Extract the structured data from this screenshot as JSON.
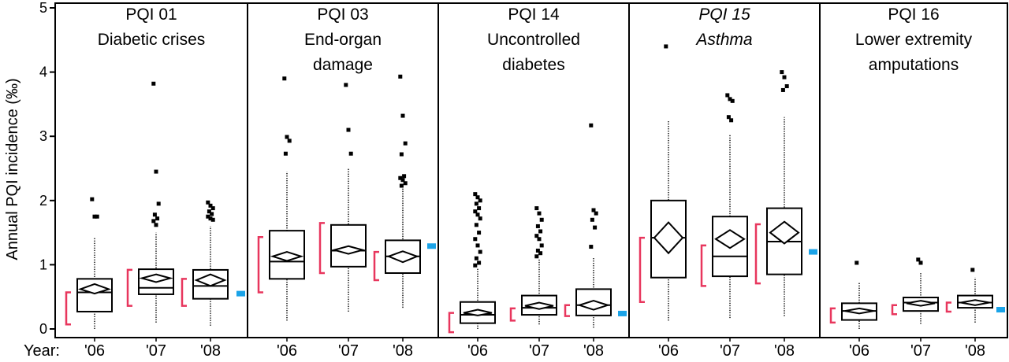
{
  "chart_data": {
    "type": "box",
    "ylabel": "Annual PQI incidence (‰)",
    "ylim": [
      0,
      5
    ],
    "yticks": [
      "0",
      "1",
      "2",
      "3",
      "4",
      "5"
    ],
    "year_axis_label": "Year:",
    "years": [
      "'06",
      "'07",
      "'08"
    ],
    "colors": {
      "interval": "#e8365d",
      "reference": "#1aa3e8",
      "box": "#000000"
    },
    "panels": [
      {
        "title": [
          "PQI 01",
          "Diabetic crises"
        ],
        "italic": false,
        "reference": 0.55,
        "boxes": [
          {
            "year": "'06",
            "q1": 0.27,
            "median": 0.57,
            "q3": 0.78,
            "wlo": 0.0,
            "whi": 1.42,
            "mean": 0.62,
            "ci": [
              0.55,
              0.7
            ],
            "interval": [
              0.07,
              0.57
            ],
            "outliers": [
              2.02,
              1.75,
              1.75
            ]
          },
          {
            "year": "'07",
            "q1": 0.54,
            "median": 0.64,
            "q3": 0.93,
            "wlo": 0.1,
            "whi": 1.5,
            "mean": 0.79,
            "ci": [
              0.73,
              0.85
            ],
            "interval": [
              0.36,
              0.92
            ],
            "outliers": [
              3.82,
              2.45,
              1.95,
              1.78,
              1.72,
              1.68,
              1.62
            ]
          },
          {
            "year": "'08",
            "q1": 0.47,
            "median": 0.67,
            "q3": 0.92,
            "wlo": 0.05,
            "whi": 1.6,
            "mean": 0.76,
            "ci": [
              0.67,
              0.85
            ],
            "interval": [
              0.36,
              0.78
            ],
            "outliers": [
              1.97,
              1.92,
              1.88,
              1.83,
              1.79,
              1.75,
              1.72,
              1.7
            ]
          }
        ]
      },
      {
        "title": [
          "PQI 03",
          "End-organ",
          "damage"
        ],
        "italic": false,
        "reference": 1.29,
        "boxes": [
          {
            "year": "'06",
            "q1": 0.78,
            "median": 1.05,
            "q3": 1.53,
            "wlo": 0.13,
            "whi": 2.45,
            "mean": 1.13,
            "ci": [
              1.06,
              1.2
            ],
            "interval": [
              0.57,
              1.43
            ],
            "outliers": [
              3.9,
              2.99,
              2.93,
              2.73
            ]
          },
          {
            "year": "'07",
            "q1": 0.97,
            "median": 1.22,
            "q3": 1.62,
            "wlo": 0.27,
            "whi": 2.5,
            "mean": 1.23,
            "ci": [
              1.17,
              1.29
            ],
            "interval": [
              0.87,
              1.65
            ],
            "outliers": [
              3.8,
              3.1,
              2.73
            ]
          },
          {
            "year": "'08",
            "q1": 0.87,
            "median": 1.13,
            "q3": 1.38,
            "wlo": 0.33,
            "whi": 2.2,
            "mean": 1.13,
            "ci": [
              1.04,
              1.21
            ],
            "interval": [
              0.76,
              1.2
            ],
            "outliers": [
              3.93,
              3.32,
              2.89,
              2.72,
              2.38,
              2.35,
              2.32,
              2.27,
              2.23
            ]
          }
        ]
      },
      {
        "title": [
          "PQI 14",
          "Uncontrolled",
          "diabetes"
        ],
        "italic": false,
        "reference": 0.24,
        "boxes": [
          {
            "year": "'06",
            "q1": 0.09,
            "median": 0.22,
            "q3": 0.42,
            "wlo": 0.0,
            "whi": 0.95,
            "mean": 0.25,
            "ci": [
              0.21,
              0.3
            ],
            "interval": [
              -0.05,
              0.25
            ],
            "outliers": [
              2.1,
              2.05,
              2.0,
              1.95,
              1.88,
              1.83,
              1.78,
              1.72,
              1.62,
              1.5,
              1.4,
              1.3,
              1.2,
              1.1,
              1.03,
              0.99
            ]
          },
          {
            "year": "'07",
            "q1": 0.22,
            "median": 0.33,
            "q3": 0.52,
            "wlo": 0.07,
            "whi": 1.08,
            "mean": 0.36,
            "ci": [
              0.31,
              0.41
            ],
            "interval": [
              0.13,
              0.32
            ],
            "outliers": [
              1.88,
              1.8,
              1.7,
              1.6,
              1.52,
              1.45,
              1.4,
              1.3,
              1.22,
              1.18,
              1.13
            ]
          },
          {
            "year": "'08",
            "q1": 0.21,
            "median": 0.37,
            "q3": 0.62,
            "wlo": 0.02,
            "whi": 1.12,
            "mean": 0.37,
            "ci": [
              0.3,
              0.44
            ],
            "interval": [
              0.2,
              0.37
            ],
            "outliers": [
              3.17,
              1.85,
              1.8,
              1.7,
              1.58,
              1.28
            ]
          }
        ]
      },
      {
        "title": [
          "PQI 15",
          "Asthma"
        ],
        "italic": true,
        "reference": 1.2,
        "boxes": [
          {
            "year": "'06",
            "q1": 0.8,
            "median": 1.42,
            "q3": 2.0,
            "wlo": 0.13,
            "whi": 3.25,
            "mean": 1.42,
            "ci": [
              1.18,
              1.66
            ],
            "interval": [
              0.42,
              1.42
            ],
            "outliers": [
              4.4
            ]
          },
          {
            "year": "'07",
            "q1": 0.82,
            "median": 1.13,
            "q3": 1.75,
            "wlo": 0.17,
            "whi": 3.02,
            "mean": 1.4,
            "ci": [
              1.26,
              1.54
            ],
            "interval": [
              0.67,
              1.3
            ],
            "outliers": [
              3.64,
              3.58,
              3.55,
              3.3,
              3.25
            ]
          },
          {
            "year": "'08",
            "q1": 0.85,
            "median": 1.36,
            "q3": 1.88,
            "wlo": 0.2,
            "whi": 3.3,
            "mean": 1.5,
            "ci": [
              1.33,
              1.67
            ],
            "interval": [
              0.71,
              1.63
            ],
            "outliers": [
              4.0,
              3.92,
              3.78,
              3.72
            ]
          }
        ]
      },
      {
        "title": [
          "PQI 16",
          "Lower extremity",
          "amputations"
        ],
        "italic": false,
        "reference": 0.3,
        "boxes": [
          {
            "year": "'06",
            "q1": 0.14,
            "median": 0.28,
            "q3": 0.4,
            "wlo": 0.0,
            "whi": 0.73,
            "mean": 0.28,
            "ci": [
              0.24,
              0.32
            ],
            "interval": [
              0.1,
              0.32
            ],
            "outliers": [
              1.03
            ]
          },
          {
            "year": "'07",
            "q1": 0.28,
            "median": 0.41,
            "q3": 0.49,
            "wlo": 0.08,
            "whi": 0.88,
            "mean": 0.4,
            "ci": [
              0.36,
              0.44
            ],
            "interval": [
              0.23,
              0.37
            ],
            "outliers": [
              1.08,
              1.03
            ]
          },
          {
            "year": "'08",
            "q1": 0.33,
            "median": 0.41,
            "q3": 0.52,
            "wlo": 0.1,
            "whi": 0.8,
            "mean": 0.41,
            "ci": [
              0.37,
              0.45
            ],
            "interval": [
              0.27,
              0.41
            ],
            "outliers": [
              0.92
            ]
          }
        ]
      }
    ]
  }
}
